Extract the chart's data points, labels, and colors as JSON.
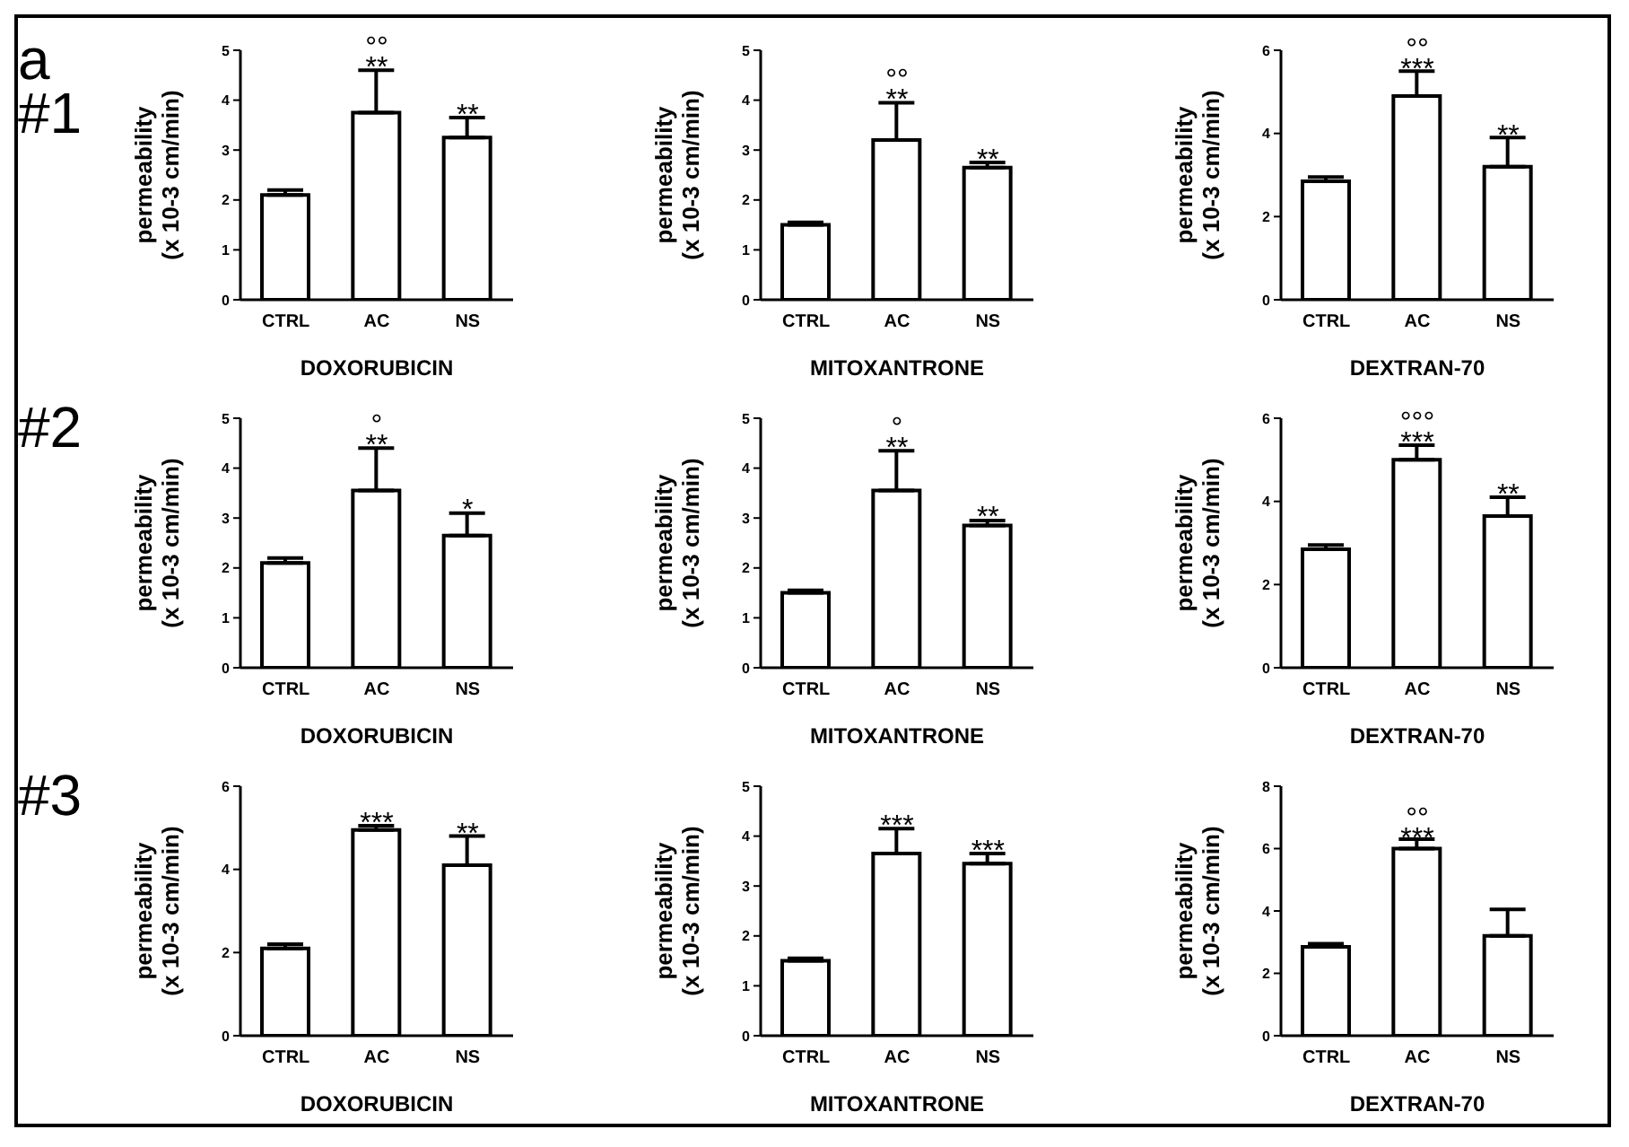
{
  "chart_data": [
    {
      "type": "bar",
      "xlabel": "DOXORUBICIN",
      "ylabel": "permeability\n(x 10-3 cm/min)",
      "categories": [
        "CTRL",
        "AC",
        "NS"
      ],
      "series": [
        {
          "color": "#ffffff",
          "values": [
            2.1,
            3.75,
            3.25
          ],
          "errors": [
            [
              2.1,
              2.2
            ],
            [
              3.75,
              4.6
            ],
            [
              3.25,
              3.65
            ]
          ]
        }
      ],
      "ylim": [
        0,
        5
      ],
      "yticks": [
        0,
        1,
        2,
        3,
        4,
        5
      ],
      "grid": false,
      "legend": false,
      "annotations": [
        "a",
        "#1",
        {
          "text": "°°\n**",
          "x": "AC",
          "y": 4.7
        },
        {
          "text": "**",
          "x": "NS",
          "y": 3.75
        }
      ]
    },
    {
      "type": "bar",
      "xlabel": "MITOXANTRONE",
      "ylabel": "permeability\n(x 10-3 cm/min)",
      "categories": [
        "CTRL",
        "AC",
        "NS"
      ],
      "series": [
        {
          "color": "#ffffff",
          "values": [
            1.5,
            3.2,
            2.65
          ],
          "errors": [
            [
              1.5,
              1.55
            ],
            [
              3.2,
              3.95
            ],
            [
              2.65,
              2.75
            ]
          ]
        }
      ],
      "ylim": [
        0,
        5
      ],
      "yticks": [
        0,
        1,
        2,
        3,
        4,
        5
      ],
      "grid": false,
      "legend": false,
      "annotations": [
        {
          "text": "°°\n**",
          "x": "AC",
          "y": 4.05
        },
        {
          "text": "**",
          "x": "NS",
          "y": 2.85
        }
      ]
    },
    {
      "type": "bar",
      "xlabel": "DEXTRAN-70",
      "ylabel": "permeability\n(x 10-3 cm/min)",
      "categories": [
        "CTRL",
        "AC",
        "NS"
      ],
      "series": [
        {
          "color": "#ffffff",
          "values": [
            2.85,
            4.9,
            3.2
          ],
          "errors": [
            [
              2.85,
              2.95
            ],
            [
              4.9,
              5.5
            ],
            [
              3.2,
              3.9
            ]
          ]
        }
      ],
      "ylim": [
        0,
        6
      ],
      "yticks": [
        0,
        2,
        4,
        6
      ],
      "grid": false,
      "legend": false,
      "annotations": [
        {
          "text": "°°\n***",
          "x": "AC",
          "y": 5.6
        },
        {
          "text": "**",
          "x": "NS",
          "y": 4.0
        }
      ]
    },
    {
      "type": "bar",
      "xlabel": "DOXORUBICIN",
      "ylabel": "permeability\n(x 10-3 cm/min)",
      "categories": [
        "CTRL",
        "AC",
        "NS"
      ],
      "series": [
        {
          "color": "#ffffff",
          "values": [
            2.1,
            3.55,
            2.65
          ],
          "errors": [
            [
              2.1,
              2.2
            ],
            [
              3.55,
              4.4
            ],
            [
              2.65,
              3.1
            ]
          ]
        }
      ],
      "ylim": [
        0,
        5
      ],
      "yticks": [
        0,
        1,
        2,
        3,
        4,
        5
      ],
      "grid": false,
      "legend": false,
      "annotations": [
        "#2",
        {
          "text": "°\n**",
          "x": "AC",
          "y": 4.5
        },
        {
          "text": "*",
          "x": "NS",
          "y": 3.2
        }
      ]
    },
    {
      "type": "bar",
      "xlabel": "MITOXANTRONE",
      "ylabel": "permeability\n(x 10-3 cm/min)",
      "categories": [
        "CTRL",
        "AC",
        "NS"
      ],
      "series": [
        {
          "color": "#ffffff",
          "values": [
            1.5,
            3.55,
            2.85
          ],
          "errors": [
            [
              1.5,
              1.55
            ],
            [
              3.55,
              4.35
            ],
            [
              2.85,
              2.95
            ]
          ]
        }
      ],
      "ylim": [
        0,
        5
      ],
      "yticks": [
        0,
        1,
        2,
        3,
        4,
        5
      ],
      "grid": false,
      "legend": false,
      "annotations": [
        {
          "text": "°\n**",
          "x": "AC",
          "y": 4.45
        },
        {
          "text": "**",
          "x": "NS",
          "y": 3.05
        }
      ]
    },
    {
      "type": "bar",
      "xlabel": "DEXTRAN-70",
      "ylabel": "permeability\n(x 10-3 cm/min)",
      "categories": [
        "CTRL",
        "AC",
        "NS"
      ],
      "series": [
        {
          "color": "#ffffff",
          "values": [
            2.85,
            5.0,
            3.65
          ],
          "errors": [
            [
              2.85,
              2.95
            ],
            [
              5.0,
              5.35
            ],
            [
              3.65,
              4.1
            ]
          ]
        }
      ],
      "ylim": [
        0,
        6
      ],
      "yticks": [
        0,
        2,
        4,
        6
      ],
      "grid": false,
      "legend": false,
      "annotations": [
        {
          "text": "°°°\n***",
          "x": "AC",
          "y": 5.45
        },
        {
          "text": "**",
          "x": "NS",
          "y": 4.2
        }
      ]
    },
    {
      "type": "bar",
      "xlabel": "DOXORUBICIN",
      "ylabel": "permeability\n(x 10-3 cm/min)",
      "categories": [
        "CTRL",
        "AC",
        "NS"
      ],
      "series": [
        {
          "color": "#ffffff",
          "values": [
            2.1,
            4.95,
            4.1
          ],
          "errors": [
            [
              2.1,
              2.2
            ],
            [
              4.95,
              5.05
            ],
            [
              4.1,
              4.8
            ]
          ]
        }
      ],
      "ylim": [
        0,
        6
      ],
      "yticks": [
        0,
        2,
        4,
        6
      ],
      "grid": false,
      "legend": false,
      "annotations": [
        "#3",
        {
          "text": "***",
          "x": "AC",
          "y": 5.15
        },
        {
          "text": "**",
          "x": "NS",
          "y": 4.9
        }
      ]
    },
    {
      "type": "bar",
      "xlabel": "MITOXANTRONE",
      "ylabel": "permeability\n(x 10-3 cm/min)",
      "categories": [
        "CTRL",
        "AC",
        "NS"
      ],
      "series": [
        {
          "color": "#ffffff",
          "values": [
            1.5,
            3.65,
            3.45
          ],
          "errors": [
            [
              1.5,
              1.55
            ],
            [
              3.65,
              4.15
            ],
            [
              3.45,
              3.65
            ]
          ]
        }
      ],
      "ylim": [
        0,
        5
      ],
      "yticks": [
        0,
        1,
        2,
        3,
        4,
        5
      ],
      "grid": false,
      "legend": false,
      "annotations": [
        {
          "text": "***",
          "x": "AC",
          "y": 4.25
        },
        {
          "text": "***",
          "x": "NS",
          "y": 3.75
        }
      ]
    },
    {
      "type": "bar",
      "xlabel": "DEXTRAN-70",
      "ylabel": "permeability\n(x 10-3 cm/min)",
      "categories": [
        "CTRL",
        "AC",
        "NS"
      ],
      "series": [
        {
          "color": "#ffffff",
          "values": [
            2.85,
            6.0,
            3.2
          ],
          "errors": [
            [
              2.85,
              2.95
            ],
            [
              6.0,
              6.3
            ],
            [
              3.2,
              4.05
            ]
          ]
        }
      ],
      "ylim": [
        0,
        8
      ],
      "yticks": [
        0,
        2,
        4,
        6,
        8
      ],
      "grid": false,
      "legend": false,
      "annotations": [
        {
          "text": "°°\n***",
          "x": "AC",
          "y": 6.4
        }
      ]
    }
  ]
}
